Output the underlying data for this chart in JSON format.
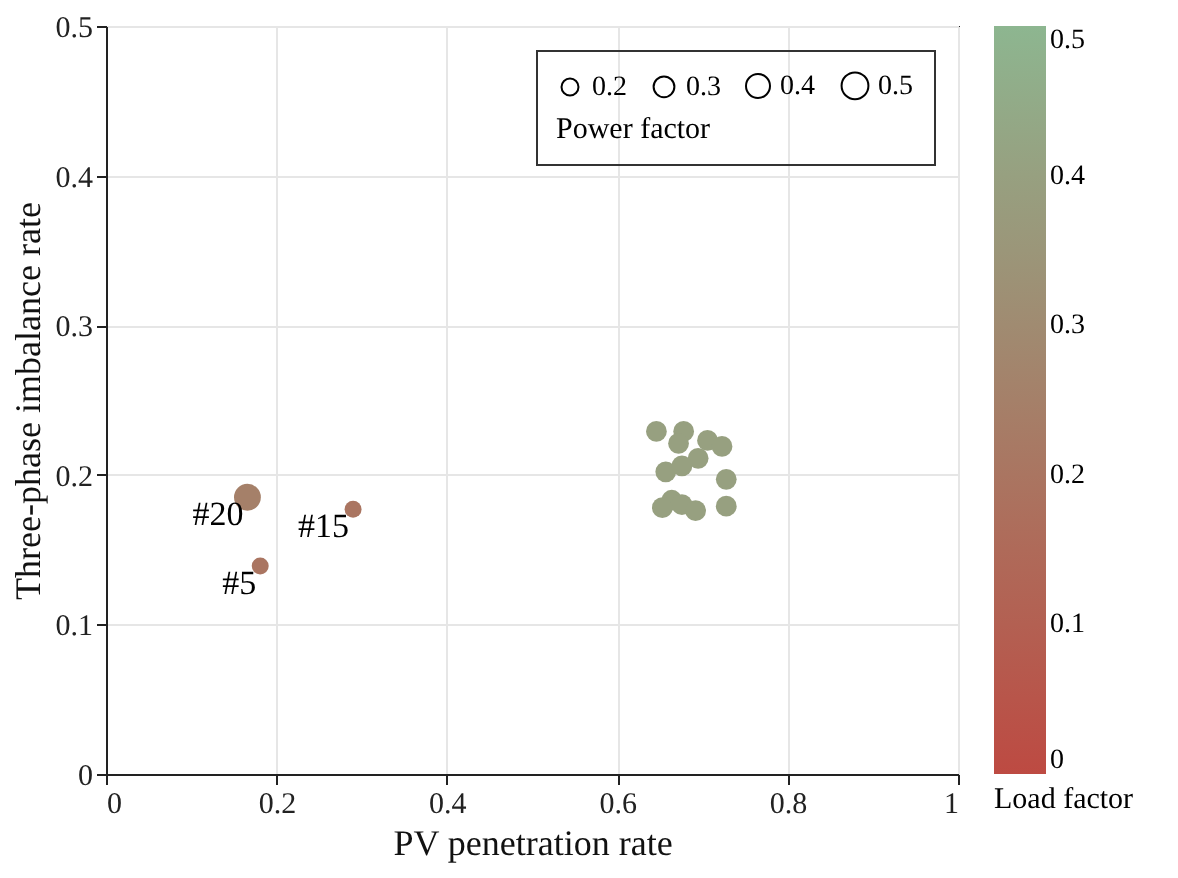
{
  "chart_data": {
    "type": "bubble",
    "xlabel": "PV penetration rate",
    "ylabel": "Three-phase imbalance rate",
    "legend_title": "Power factor",
    "clabel": "Load factor",
    "x": [
      0.166,
      0.29,
      0.181,
      0.646,
      0.678,
      0.672,
      0.706,
      0.723,
      0.695,
      0.657,
      0.676,
      0.728,
      0.664,
      0.676,
      0.692,
      0.653,
      0.728
    ],
    "values": [
      0.185,
      0.177,
      0.139,
      0.229,
      0.229,
      0.221,
      0.223,
      0.219,
      0.211,
      0.202,
      0.206,
      0.197,
      0.183,
      0.18,
      0.176,
      0.178,
      0.179
    ],
    "sizes": [
      0.5,
      0.2,
      0.2,
      0.3,
      0.3,
      0.3,
      0.3,
      0.3,
      0.3,
      0.3,
      0.3,
      0.3,
      0.3,
      0.3,
      0.3,
      0.3,
      0.3
    ],
    "cvalues": [
      0.25,
      0.2,
      0.2,
      0.4,
      0.4,
      0.4,
      0.4,
      0.4,
      0.4,
      0.4,
      0.4,
      0.4,
      0.4,
      0.4,
      0.4,
      0.4,
      0.4
    ],
    "size_legend": [
      0.2,
      0.3,
      0.4,
      0.5
    ],
    "clim": [
      0,
      0.5
    ],
    "cticks": [
      0,
      0.1,
      0.2,
      0.3,
      0.4,
      0.5
    ],
    "xlim": [
      0,
      1
    ],
    "xticks": [
      0,
      0.2,
      0.4,
      0.6,
      0.8,
      1
    ],
    "ylim": [
      0,
      0.5
    ],
    "yticks": [
      0,
      0.1,
      0.2,
      0.3,
      0.4,
      0.5
    ],
    "grid": true,
    "annotations": [
      {
        "text": "#20",
        "x": 0.166,
        "y": 0.185
      },
      {
        "text": "#15",
        "x": 0.29,
        "y": 0.177
      },
      {
        "text": "#5",
        "x": 0.181,
        "y": 0.139
      }
    ]
  }
}
